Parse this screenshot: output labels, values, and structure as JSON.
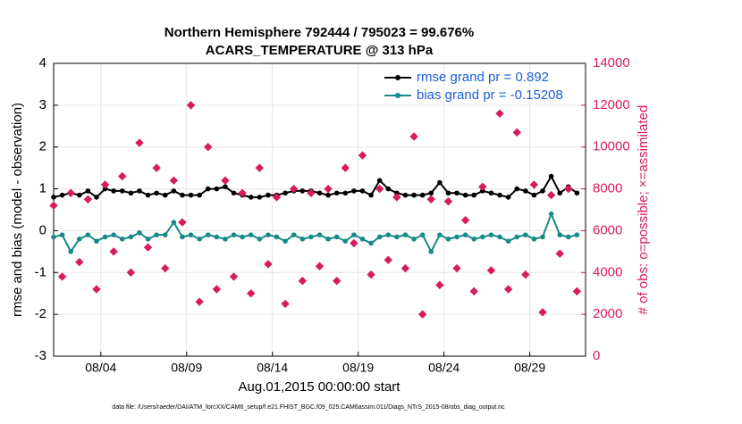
{
  "chart_data": {
    "type": "line",
    "title": "Northern Hemisphere 792444 / 795023 = 99.676%",
    "subtitle": "ACARS_TEMPERATURE @ 313 hPa",
    "x_label": "Aug.01,2015 00:00:00 start",
    "y_label": "rmse and bias (model - observation)",
    "y2_label": "# of obs: o=possible; ×=assimilated",
    "footnote": "data file: /Users/raeder/DAI/ATM_forcXX/CAM6_setup/f.e21.FHIST_BGC.f09_025.CAM6assim.011/Diags_NTrS_2015-08/obs_diag_output.nc",
    "xlim": [
      0.25,
      31.25
    ],
    "xticks": [
      {
        "value": 3,
        "label": "08/04"
      },
      {
        "value": 8,
        "label": "08/09"
      },
      {
        "value": 13,
        "label": "08/14"
      },
      {
        "value": 18,
        "label": "08/19"
      },
      {
        "value": 23,
        "label": "08/24"
      },
      {
        "value": 28,
        "label": "08/29"
      }
    ],
    "ylim": [
      -3,
      4
    ],
    "yticks": [
      -3,
      -2,
      -1,
      0,
      1,
      2,
      3,
      4
    ],
    "y2lim": [
      0,
      14000
    ],
    "y2ticks": [
      0,
      2000,
      4000,
      6000,
      8000,
      10000,
      12000,
      14000
    ],
    "grid": true,
    "legend": "upper right",
    "x": [
      0.25,
      0.75,
      1.25,
      1.75,
      2.25,
      2.75,
      3.25,
      3.75,
      4.25,
      4.75,
      5.25,
      5.75,
      6.25,
      6.75,
      7.25,
      7.75,
      8.25,
      8.75,
      9.25,
      9.75,
      10.25,
      10.75,
      11.25,
      11.75,
      12.25,
      12.75,
      13.25,
      13.75,
      14.25,
      14.75,
      15.25,
      15.75,
      16.25,
      16.75,
      17.25,
      17.75,
      18.25,
      18.75,
      19.25,
      19.75,
      20.25,
      20.75,
      21.25,
      21.75,
      22.25,
      22.75,
      23.25,
      23.75,
      24.25,
      24.75,
      25.25,
      25.75,
      26.25,
      26.75,
      27.25,
      27.75,
      28.25,
      28.75,
      29.25,
      29.75,
      30.25,
      30.75
    ],
    "series": [
      {
        "name": "rmse grand pr = 0.892",
        "color": "#000000",
        "values": [
          0.8,
          0.85,
          0.9,
          0.85,
          0.95,
          0.8,
          1.0,
          0.95,
          0.95,
          0.9,
          0.95,
          0.85,
          0.9,
          0.85,
          0.95,
          0.85,
          0.85,
          0.85,
          1.0,
          1.0,
          1.05,
          0.9,
          0.85,
          0.8,
          0.8,
          0.85,
          0.85,
          0.9,
          0.95,
          0.95,
          0.95,
          0.9,
          0.85,
          0.9,
          0.9,
          0.95,
          0.95,
          0.85,
          1.2,
          1.0,
          0.9,
          0.85,
          0.85,
          0.85,
          0.9,
          1.15,
          0.9,
          0.9,
          0.85,
          0.85,
          0.95,
          0.9,
          0.85,
          0.8,
          1.0,
          0.95,
          0.85,
          0.95,
          1.3,
          0.9,
          1.05,
          0.9
        ]
      },
      {
        "name": "bias grand pr = -0.15208",
        "color": "#178a88",
        "values": [
          -0.15,
          -0.1,
          -0.5,
          -0.2,
          -0.1,
          -0.25,
          -0.15,
          -0.1,
          -0.2,
          -0.15,
          -0.05,
          -0.2,
          -0.1,
          -0.1,
          0.2,
          -0.15,
          -0.1,
          -0.2,
          -0.1,
          -0.15,
          -0.2,
          -0.1,
          -0.15,
          -0.1,
          -0.2,
          -0.1,
          -0.15,
          -0.25,
          -0.1,
          -0.2,
          -0.15,
          -0.1,
          -0.2,
          -0.15,
          -0.25,
          -0.1,
          -0.2,
          -0.3,
          -0.15,
          -0.1,
          -0.15,
          -0.1,
          -0.2,
          -0.1,
          -0.5,
          -0.1,
          -0.2,
          -0.15,
          -0.1,
          -0.2,
          -0.15,
          -0.1,
          -0.15,
          -0.25,
          -0.15,
          -0.1,
          -0.2,
          -0.15,
          0.4,
          -0.1,
          -0.15,
          -0.1
        ]
      },
      {
        "axis": "y2",
        "color": "#d81b60",
        "values": [
          7200,
          3800,
          7800,
          4500,
          7500,
          3200,
          8200,
          5000,
          8600,
          4000,
          10200,
          5200,
          9000,
          4200,
          8400,
          6400,
          12000,
          2600,
          10000,
          3200,
          8400,
          3800,
          7800,
          3000,
          9000,
          4400,
          7600,
          2500,
          8000,
          3600,
          7800,
          4300,
          8000,
          3600,
          9000,
          5400,
          9600,
          3900,
          8000,
          4600,
          7600,
          4200,
          10500,
          2000,
          7500,
          3400,
          7400,
          4200,
          6500,
          3100,
          8100,
          4100,
          11600,
          3200,
          10700,
          3900,
          8200,
          2100,
          7700,
          4900,
          8000,
          3100
        ]
      }
    ]
  }
}
